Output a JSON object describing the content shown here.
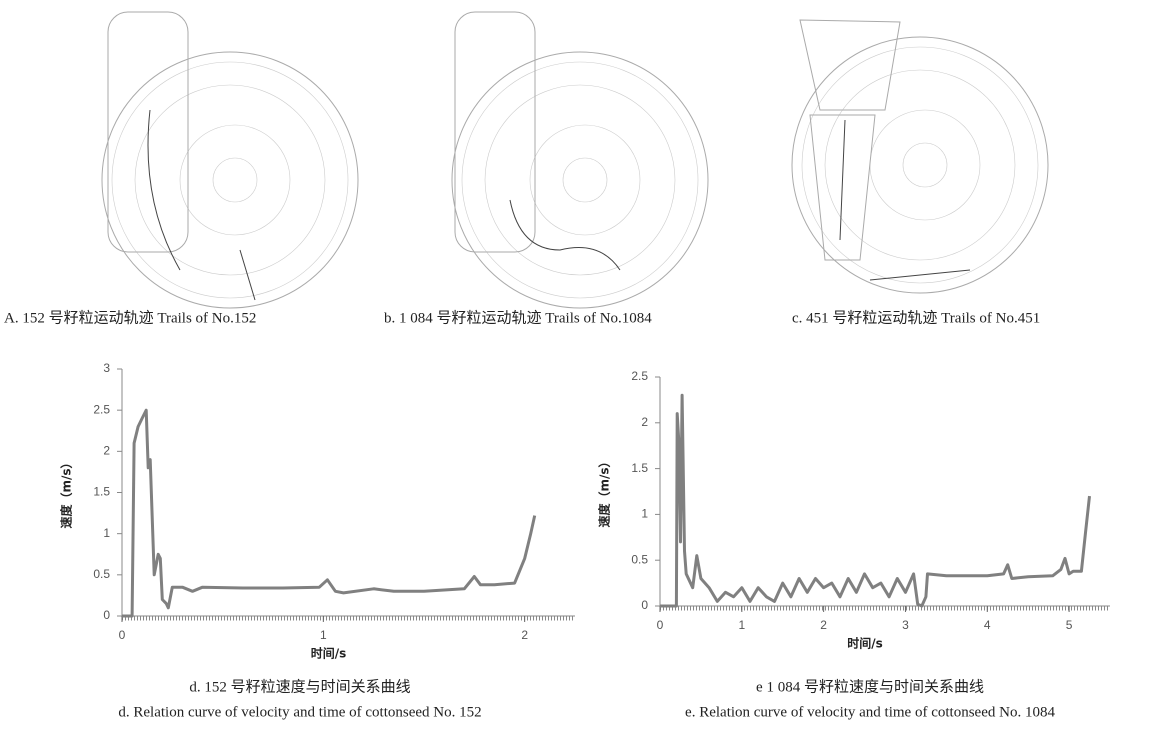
{
  "panels": [
    {
      "caption": "A. 152 号籽粒运动轨迹  Trails of No.152"
    },
    {
      "caption": "b. 1 084 号籽粒运动轨迹  Trails of No.1084"
    },
    {
      "caption": "c. 451 号籽粒运动轨迹  Trails of No.451"
    }
  ],
  "chart_data": [
    {
      "type": "line",
      "title": "d. 152 号籽粒速度与时间关系曲线",
      "subtitle": "d. Relation curve of velocity and time of cottonseed No. 152",
      "x_label": "时间/s",
      "y_label": "速度（m/s）",
      "color": "#808080",
      "xlim": [
        0,
        2.25
      ],
      "xticks": [
        0,
        1,
        2
      ],
      "ylim": [
        0,
        3
      ],
      "yticks": [
        0,
        0.5,
        1,
        1.5,
        2,
        2.5,
        3
      ],
      "x": [
        0,
        0.05,
        0.06,
        0.08,
        0.1,
        0.12,
        0.13,
        0.14,
        0.16,
        0.18,
        0.19,
        0.2,
        0.22,
        0.23,
        0.25,
        0.3,
        0.35,
        0.4,
        0.6,
        0.8,
        0.98,
        1.02,
        1.06,
        1.1,
        1.25,
        1.35,
        1.5,
        1.7,
        1.75,
        1.78,
        1.85,
        1.95,
        2.0,
        2.03,
        2.05
      ],
      "values": [
        0,
        0,
        2.1,
        2.3,
        2.4,
        2.5,
        1.8,
        1.9,
        0.5,
        0.75,
        0.7,
        0.2,
        0.15,
        0.1,
        0.35,
        0.35,
        0.3,
        0.35,
        0.34,
        0.34,
        0.35,
        0.44,
        0.3,
        0.28,
        0.33,
        0.3,
        0.3,
        0.33,
        0.48,
        0.38,
        0.38,
        0.4,
        0.7,
        1.0,
        1.22
      ]
    },
    {
      "type": "line",
      "title": "e   1 084 号籽粒速度与时间关系曲线",
      "subtitle": "e. Relation curve of velocity and time of cottonseed No. 1084",
      "x_label": "时间/s",
      "y_label": "速度（m/s）",
      "color": "#808080",
      "xlim": [
        0,
        5.5
      ],
      "xticks": [
        0,
        1,
        2,
        3,
        4,
        5
      ],
      "ylim": [
        0,
        2.5
      ],
      "yticks": [
        0,
        0.5,
        1,
        1.5,
        2,
        2.5
      ],
      "x": [
        0,
        0.2,
        0.21,
        0.23,
        0.25,
        0.27,
        0.3,
        0.32,
        0.4,
        0.45,
        0.5,
        0.6,
        0.7,
        0.8,
        0.9,
        1.0,
        1.1,
        1.2,
        1.3,
        1.4,
        1.5,
        1.6,
        1.7,
        1.8,
        1.9,
        2.0,
        2.1,
        2.2,
        2.3,
        2.4,
        2.5,
        2.6,
        2.7,
        2.8,
        2.9,
        3.0,
        3.1,
        3.15,
        3.2,
        3.25,
        3.27,
        3.5,
        4.0,
        4.2,
        4.25,
        4.3,
        4.5,
        4.8,
        4.9,
        4.95,
        5.0,
        5.05,
        5.15,
        5.2,
        5.25
      ],
      "values": [
        0,
        0,
        2.1,
        1.8,
        0.7,
        2.3,
        0.6,
        0.35,
        0.2,
        0.55,
        0.3,
        0.2,
        0.05,
        0.15,
        0.1,
        0.2,
        0.05,
        0.2,
        0.1,
        0.05,
        0.25,
        0.1,
        0.3,
        0.15,
        0.3,
        0.2,
        0.25,
        0.1,
        0.3,
        0.15,
        0.35,
        0.2,
        0.25,
        0.1,
        0.3,
        0.15,
        0.35,
        0.02,
        0,
        0.1,
        0.35,
        0.33,
        0.33,
        0.35,
        0.45,
        0.3,
        0.32,
        0.33,
        0.4,
        0.52,
        0.35,
        0.38,
        0.38,
        0.8,
        1.2
      ]
    }
  ]
}
